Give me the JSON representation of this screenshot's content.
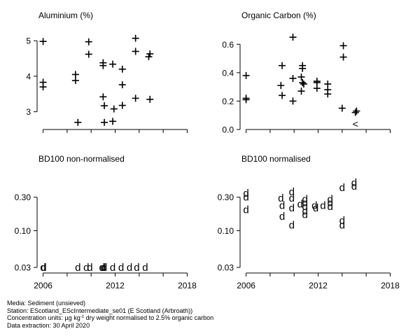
{
  "chart_data": [
    {
      "type": "scatter",
      "title": "Aluminium (%)",
      "xlim": [
        2005.5,
        2018.5
      ],
      "ylim": [
        2.5,
        5.3
      ],
      "y_ticks": [
        3,
        4,
        5
      ],
      "x_tick_marks": [
        2006,
        2008,
        2010,
        2012,
        2014,
        2016,
        2018
      ],
      "x_tick_labels": [],
      "marker": "+",
      "points": [
        {
          "x": 2006,
          "y": 4.98
        },
        {
          "x": 2006,
          "y": 3.83
        },
        {
          "x": 2006,
          "y": 3.7
        },
        {
          "x": 2008.7,
          "y": 4.05
        },
        {
          "x": 2008.7,
          "y": 3.88
        },
        {
          "x": 2008.9,
          "y": 2.7
        },
        {
          "x": 2009.8,
          "y": 4.97
        },
        {
          "x": 2009.8,
          "y": 4.62
        },
        {
          "x": 2011,
          "y": 4.38
        },
        {
          "x": 2011,
          "y": 4.3
        },
        {
          "x": 2011,
          "y": 3.42
        },
        {
          "x": 2011.1,
          "y": 3.17
        },
        {
          "x": 2011.1,
          "y": 2.7
        },
        {
          "x": 2011.8,
          "y": 4.34
        },
        {
          "x": 2011.9,
          "y": 3.08
        },
        {
          "x": 2011.8,
          "y": 2.73
        },
        {
          "x": 2012.6,
          "y": 4.2
        },
        {
          "x": 2012.6,
          "y": 3.76
        },
        {
          "x": 2012.6,
          "y": 3.18
        },
        {
          "x": 2013.7,
          "y": 5.07
        },
        {
          "x": 2013.7,
          "y": 4.7
        },
        {
          "x": 2013.7,
          "y": 3.38
        },
        {
          "x": 2014.9,
          "y": 4.63
        },
        {
          "x": 2014.8,
          "y": 4.55
        },
        {
          "x": 2014.9,
          "y": 3.35
        }
      ]
    },
    {
      "type": "scatter",
      "title": "Organic Carbon (%)",
      "xlim": [
        2005.5,
        2018.5
      ],
      "ylim": [
        0,
        0.7
      ],
      "y_ticks": [
        0.0,
        0.2,
        0.4,
        0.6
      ],
      "y_tick_labels": [
        "0.0",
        "0.2",
        "0.4",
        "0.6"
      ],
      "x_tick_marks": [
        2006,
        2008,
        2010,
        2012,
        2014,
        2016,
        2018
      ],
      "x_tick_labels": [],
      "marker": "+",
      "points": [
        {
          "x": 2006,
          "y": 0.38
        },
        {
          "x": 2006,
          "y": 0.22
        },
        {
          "x": 2006,
          "y": 0.21
        },
        {
          "x": 2009,
          "y": 0.45
        },
        {
          "x": 2008.9,
          "y": 0.31
        },
        {
          "x": 2009,
          "y": 0.24
        },
        {
          "x": 2009.9,
          "y": 0.65
        },
        {
          "x": 2009.9,
          "y": 0.36
        },
        {
          "x": 2009.9,
          "y": 0.2
        },
        {
          "x": 2010.7,
          "y": 0.45
        },
        {
          "x": 2010.7,
          "y": 0.43
        },
        {
          "x": 2010.6,
          "y": 0.37
        },
        {
          "x": 2010.7,
          "y": 0.33
        },
        {
          "x": 2010.8,
          "y": 0.32
        },
        {
          "x": 2010.6,
          "y": 0.27
        },
        {
          "x": 2011.9,
          "y": 0.34
        },
        {
          "x": 2011.9,
          "y": 0.33
        },
        {
          "x": 2011.9,
          "y": 0.29
        },
        {
          "x": 2012.8,
          "y": 0.32
        },
        {
          "x": 2012.8,
          "y": 0.28
        },
        {
          "x": 2012.8,
          "y": 0.25
        },
        {
          "x": 2014.1,
          "y": 0.59
        },
        {
          "x": 2014.1,
          "y": 0.51
        },
        {
          "x": 2014,
          "y": 0.15
        },
        {
          "x": 2015.2,
          "y": 0.13
        },
        {
          "x": 2015.1,
          "y": 0.12
        }
      ],
      "censored_points": [
        {
          "x": 2015.1,
          "y": 0.04,
          "marker": "<"
        }
      ]
    },
    {
      "type": "scatter",
      "title": "BD100 non-normalised",
      "xlim": [
        2005.5,
        2018.5
      ],
      "ylim": [
        0.025,
        0.65
      ],
      "yscale": "log",
      "y_ticks": [
        0.03,
        0.1,
        0.3
      ],
      "y_tick_labels": [
        "0.03",
        "0.10",
        "0.30"
      ],
      "x_tick_marks": [
        2006,
        2008,
        2010,
        2012,
        2014,
        2016,
        2018
      ],
      "x_tick_labels": [],
      "marker": "d",
      "points": [
        {
          "x": 2006,
          "y": 0.03
        },
        {
          "x": 2006.05,
          "y": 0.03
        },
        {
          "x": 2008.9,
          "y": 0.03
        },
        {
          "x": 2009.6,
          "y": 0.03
        },
        {
          "x": 2009.9,
          "y": 0.03
        },
        {
          "x": 2010.9,
          "y": 0.03
        },
        {
          "x": 2011,
          "y": 0.03
        },
        {
          "x": 2011.1,
          "y": 0.03
        },
        {
          "x": 2011.8,
          "y": 0.03
        },
        {
          "x": 2012.5,
          "y": 0.03
        },
        {
          "x": 2013.2,
          "y": 0.03
        },
        {
          "x": 2013.8,
          "y": 0.03
        },
        {
          "x": 2014.5,
          "y": 0.03
        }
      ]
    },
    {
      "type": "scatter",
      "title": "BD100 normalised",
      "xlim": [
        2005.5,
        2018.5
      ],
      "ylim": [
        0.025,
        0.65
      ],
      "yscale": "log",
      "y_ticks": [
        0.03,
        0.1,
        0.3
      ],
      "y_tick_labels": [
        "0.03",
        "0.10",
        "0.30"
      ],
      "x_tick_marks": [
        2006,
        2008,
        2010,
        2012,
        2014,
        2016,
        2018
      ],
      "x_tick_labels": [
        "2006",
        "2012",
        "2018"
      ],
      "marker": "d",
      "points": [
        {
          "x": 2006,
          "y": 0.34
        },
        {
          "x": 2006,
          "y": 0.3
        },
        {
          "x": 2006,
          "y": 0.2
        },
        {
          "x": 2008.9,
          "y": 0.29
        },
        {
          "x": 2009,
          "y": 0.23
        },
        {
          "x": 2009,
          "y": 0.16
        },
        {
          "x": 2009.8,
          "y": 0.36
        },
        {
          "x": 2009.8,
          "y": 0.29
        },
        {
          "x": 2009.8,
          "y": 0.21
        },
        {
          "x": 2009.8,
          "y": 0.12
        },
        {
          "x": 2010.5,
          "y": 0.24
        },
        {
          "x": 2010.9,
          "y": 0.28
        },
        {
          "x": 2010.9,
          "y": 0.25
        },
        {
          "x": 2010.9,
          "y": 0.22
        },
        {
          "x": 2010.9,
          "y": 0.19
        },
        {
          "x": 2010.9,
          "y": 0.17
        },
        {
          "x": 2011.7,
          "y": 0.23
        },
        {
          "x": 2011.8,
          "y": 0.21
        },
        {
          "x": 2012.4,
          "y": 0.23
        },
        {
          "x": 2013,
          "y": 0.28
        },
        {
          "x": 2013,
          "y": 0.25
        },
        {
          "x": 2013,
          "y": 0.22
        },
        {
          "x": 2014,
          "y": 0.41
        },
        {
          "x": 2014,
          "y": 0.14
        },
        {
          "x": 2014,
          "y": 0.12
        },
        {
          "x": 2015,
          "y": 0.48
        },
        {
          "x": 2015,
          "y": 0.43
        }
      ]
    }
  ],
  "footer": {
    "media": "Media: Sediment (unsieved)",
    "station": "Station: EScotland_EScIntermediate_se01 (E Scotland (Arbroath))",
    "units_prefix": "Concentration units:  ",
    "units_unit": "µg kg",
    "units_exponent": "-1",
    "units_suffix": " dry weight normalised to 2.5% organic carbon",
    "extraction": "Data extraction: 30 April 2020"
  }
}
